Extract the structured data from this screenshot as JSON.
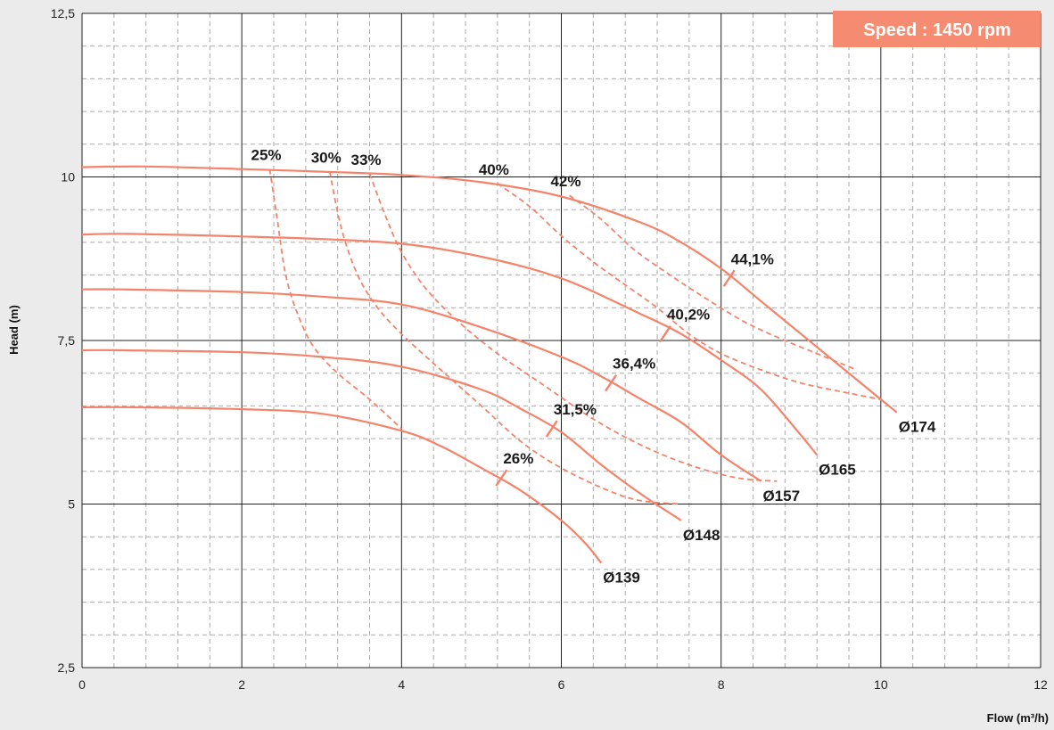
{
  "chart_data": {
    "type": "line",
    "title": "",
    "badge": "Speed : 1450 rpm",
    "xlabel": "Flow (m³/h)",
    "ylabel": "Head (m)",
    "xlim": [
      0,
      12
    ],
    "ylim": [
      2.5,
      12.5
    ],
    "x_ticks": [
      {
        "value": 0,
        "label": "0"
      },
      {
        "value": 2,
        "label": "2"
      },
      {
        "value": 4,
        "label": "4"
      },
      {
        "value": 6,
        "label": "6"
      },
      {
        "value": 8,
        "label": "8"
      },
      {
        "value": 10,
        "label": "10"
      },
      {
        "value": 12,
        "label": "12"
      }
    ],
    "y_ticks": [
      {
        "value": 2.5,
        "label": "2,5"
      },
      {
        "value": 5,
        "label": "5"
      },
      {
        "value": 7.5,
        "label": "7,5"
      },
      {
        "value": 10,
        "label": "10"
      },
      {
        "value": 12.5,
        "label": "12,5"
      }
    ],
    "grid": true,
    "colors": {
      "curve": "#f4836a",
      "badge": "#f58b71",
      "major_grid": "#222222",
      "minor_grid": "#aaaaaa",
      "background": "#ebebeb"
    },
    "series": [
      {
        "name": "Ø174",
        "points": [
          [
            0,
            10.15
          ],
          [
            0.8,
            10.16
          ],
          [
            2,
            10.12
          ],
          [
            3,
            10.08
          ],
          [
            4,
            10.03
          ],
          [
            5,
            9.92
          ],
          [
            6,
            9.7
          ],
          [
            7,
            9.3
          ],
          [
            7.5,
            9.0
          ],
          [
            8,
            8.6
          ],
          [
            8.5,
            8.1
          ],
          [
            9,
            7.6
          ],
          [
            9.5,
            7.1
          ],
          [
            10,
            6.6
          ],
          [
            10.2,
            6.4
          ]
        ]
      },
      {
        "name": "Ø165",
        "points": [
          [
            0,
            9.12
          ],
          [
            0.6,
            9.13
          ],
          [
            2,
            9.09
          ],
          [
            3,
            9.05
          ],
          [
            4,
            8.98
          ],
          [
            5,
            8.78
          ],
          [
            6,
            8.45
          ],
          [
            7,
            7.9
          ],
          [
            7.5,
            7.6
          ],
          [
            8,
            7.2
          ],
          [
            8.5,
            6.75
          ],
          [
            9,
            6.05
          ],
          [
            9.2,
            5.75
          ]
        ]
      },
      {
        "name": "Ø157",
        "points": [
          [
            0,
            8.28
          ],
          [
            0.5,
            8.28
          ],
          [
            2,
            8.24
          ],
          [
            3,
            8.17
          ],
          [
            4,
            8.05
          ],
          [
            5,
            7.7
          ],
          [
            6,
            7.25
          ],
          [
            6.5,
            6.95
          ],
          [
            7,
            6.6
          ],
          [
            7.5,
            6.25
          ],
          [
            8,
            5.75
          ],
          [
            8.5,
            5.35
          ],
          [
            8.25,
            5.55
          ],
          [
            8.3,
            5.5
          ],
          [
            8.2,
            5.6
          ]
        ]
      },
      {
        "name": "Ø148",
        "points": [
          [
            0,
            7.35
          ],
          [
            0.5,
            7.35
          ],
          [
            2,
            7.32
          ],
          [
            3,
            7.25
          ],
          [
            4,
            7.1
          ],
          [
            5,
            6.75
          ],
          [
            5.5,
            6.45
          ],
          [
            6,
            6.1
          ],
          [
            6.5,
            5.6
          ],
          [
            7,
            5.15
          ],
          [
            7.5,
            4.75
          ],
          [
            7.35,
            4.86
          ],
          [
            7.4,
            4.82
          ],
          [
            7.5,
            4.68
          ],
          [
            7.35,
            4.85
          ]
        ]
      },
      {
        "name": "Ø139",
        "points": [
          [
            0,
            6.48
          ],
          [
            0.6,
            6.48
          ],
          [
            2,
            6.45
          ],
          [
            3,
            6.38
          ],
          [
            4,
            6.12
          ],
          [
            4.5,
            5.88
          ],
          [
            5,
            5.55
          ],
          [
            5.5,
            5.2
          ],
          [
            6,
            4.75
          ],
          [
            6.3,
            4.4
          ],
          [
            6.5,
            4.1
          ]
        ]
      }
    ],
    "efficiency_markers": [
      {
        "label": "44,1%",
        "x": 8.1,
        "y": 8.45
      },
      {
        "label": "40,2%",
        "x": 7.3,
        "y": 7.6
      },
      {
        "label": "36,4%",
        "x": 6.62,
        "y": 6.85
      },
      {
        "label": "31,5%",
        "x": 5.88,
        "y": 6.15
      },
      {
        "label": "26%",
        "x": 5.25,
        "y": 5.4
      }
    ],
    "iso_efficiency": [
      {
        "label": "25%",
        "points": [
          [
            2.35,
            10.12
          ],
          [
            2.45,
            9.3
          ],
          [
            2.55,
            8.5
          ],
          [
            2.7,
            7.9
          ],
          [
            2.9,
            7.4
          ],
          [
            3.2,
            7.0
          ],
          [
            3.6,
            6.6
          ],
          [
            4.0,
            6.15
          ]
        ]
      },
      {
        "label": "30%",
        "points": [
          [
            3.1,
            10.08
          ],
          [
            3.25,
            9.2
          ],
          [
            3.45,
            8.5
          ],
          [
            3.7,
            8.0
          ],
          [
            4.0,
            7.6
          ],
          [
            4.4,
            7.15
          ],
          [
            5.0,
            6.5
          ],
          [
            5.5,
            5.95
          ],
          [
            6.0,
            5.55
          ],
          [
            6.6,
            5.2
          ],
          [
            7.0,
            5.05
          ],
          [
            7.5,
            5.0
          ]
        ]
      },
      {
        "label": "33%",
        "points": [
          [
            3.6,
            10.05
          ],
          [
            3.8,
            9.4
          ],
          [
            4.0,
            8.85
          ],
          [
            4.3,
            8.3
          ],
          [
            4.7,
            7.8
          ],
          [
            5.2,
            7.3
          ],
          [
            5.8,
            6.8
          ],
          [
            6.4,
            6.3
          ],
          [
            7.0,
            5.9
          ],
          [
            7.6,
            5.6
          ],
          [
            8.2,
            5.4
          ],
          [
            8.7,
            5.35
          ]
        ]
      },
      {
        "label": "40%",
        "points": [
          [
            5.2,
            9.9
          ],
          [
            5.6,
            9.55
          ],
          [
            6.0,
            9.1
          ],
          [
            6.4,
            8.7
          ],
          [
            6.8,
            8.35
          ],
          [
            7.2,
            8.0
          ],
          [
            7.6,
            7.6
          ],
          [
            8.0,
            7.3
          ],
          [
            8.5,
            7.05
          ],
          [
            9.0,
            6.85
          ],
          [
            9.5,
            6.72
          ],
          [
            10.0,
            6.6
          ]
        ]
      },
      {
        "label": "42%",
        "points": [
          [
            6.1,
            9.72
          ],
          [
            6.5,
            9.35
          ],
          [
            6.9,
            8.9
          ],
          [
            7.3,
            8.55
          ],
          [
            7.8,
            8.15
          ],
          [
            8.3,
            7.78
          ],
          [
            8.8,
            7.5
          ],
          [
            9.3,
            7.25
          ],
          [
            9.7,
            7.05
          ]
        ]
      }
    ]
  }
}
